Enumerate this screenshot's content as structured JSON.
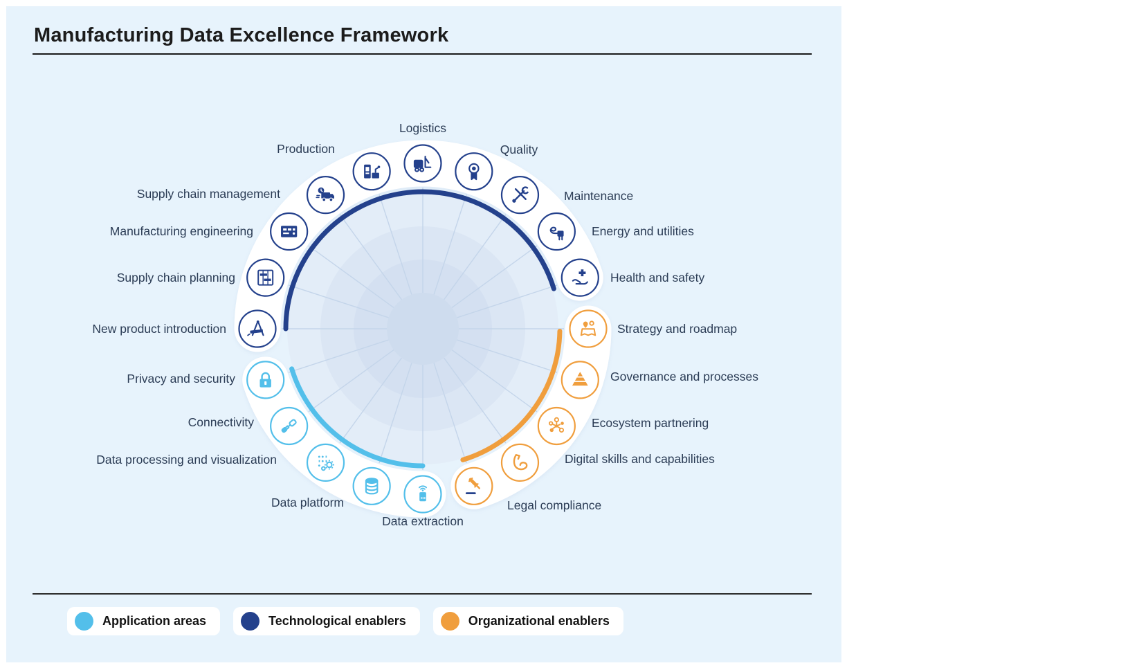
{
  "title": "Manufacturing Data Excellence Framework",
  "colors": {
    "panel_background": "#E7F3FC",
    "application": "#53BFEA",
    "technological": "#24418C",
    "organizational": "#F09E3D",
    "label_text": "#2B3C55",
    "title_text": "#1C1C1C"
  },
  "wheel": {
    "items": [
      {
        "label": "Logistics",
        "group": "technological",
        "icon": "forklift-icon",
        "angle": 90
      },
      {
        "label": "Quality",
        "group": "technological",
        "icon": "award-ribbon-icon",
        "angle": 72
      },
      {
        "label": "Maintenance",
        "group": "technological",
        "icon": "tools-icon",
        "angle": 54
      },
      {
        "label": "Energy and utilities",
        "group": "technological",
        "icon": "power-plug-icon",
        "angle": 36
      },
      {
        "label": "Health and safety",
        "group": "technological",
        "icon": "medical-cross-hand-icon",
        "angle": 18
      },
      {
        "label": "Strategy and roadmap",
        "group": "organizational",
        "icon": "map-pins-icon",
        "angle": 0
      },
      {
        "label": "Governance and processes",
        "group": "organizational",
        "icon": "pyramid-icon",
        "angle": -18
      },
      {
        "label": "Ecosystem partnering",
        "group": "organizational",
        "icon": "network-icon",
        "angle": -36
      },
      {
        "label": "Digital skills and capabilities",
        "group": "organizational",
        "icon": "flexed-arm-icon",
        "angle": -54
      },
      {
        "label": "Legal compliance",
        "group": "organizational",
        "icon": "gavel-icon",
        "angle": -72
      },
      {
        "label": "Data extraction",
        "group": "application",
        "icon": "sensor-icon",
        "angle": -90
      },
      {
        "label": "Data platform",
        "group": "application",
        "icon": "database-icon",
        "angle": -108
      },
      {
        "label": "Data processing and visualization",
        "group": "application",
        "icon": "binary-gears-icon",
        "angle": -126
      },
      {
        "label": "Connectivity",
        "group": "application",
        "icon": "connectors-icon",
        "angle": -144
      },
      {
        "label": "Privacy and security",
        "group": "application",
        "icon": "padlock-icon",
        "angle": -162
      },
      {
        "label": "New product introduction",
        "group": "technological",
        "icon": "drafting-compass-icon",
        "angle": 180
      },
      {
        "label": "Supply chain planning",
        "group": "technological",
        "icon": "planning-board-icon",
        "angle": 162
      },
      {
        "label": "Manufacturing engineering",
        "group": "technological",
        "icon": "control-panel-icon",
        "angle": 144
      },
      {
        "label": "Supply chain management",
        "group": "technological",
        "icon": "truck-icon",
        "angle": 126
      },
      {
        "label": "Production",
        "group": "technological",
        "icon": "production-machine-icon",
        "angle": 108
      }
    ]
  },
  "legend": {
    "items": [
      {
        "label": "Application areas",
        "color_key": "application"
      },
      {
        "label": "Technological enablers",
        "color_key": "technological"
      },
      {
        "label": "Organizational enablers",
        "color_key": "organizational"
      }
    ]
  }
}
